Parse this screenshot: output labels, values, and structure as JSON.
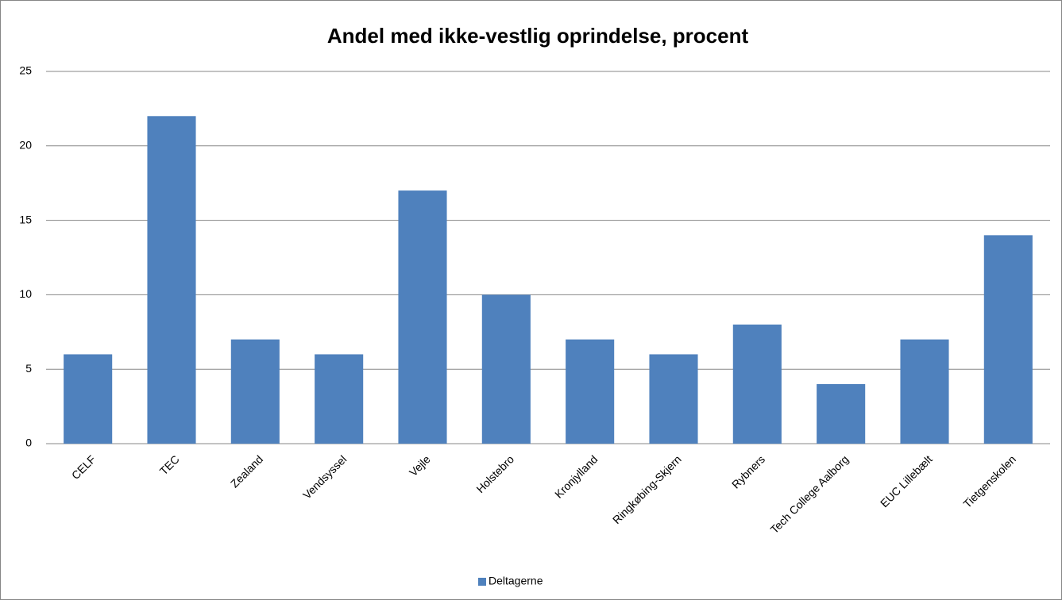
{
  "chart_data": {
    "type": "bar",
    "title": "Andel med ikke-vestlig oprindelse, procent",
    "categories": [
      "CELF",
      "TEC",
      "Zealand",
      "Vendsyssel",
      "Vejle",
      "Holstebro",
      "Kronjylland",
      "Ringkøbing-Skjern",
      "Rybners",
      "Tech College Aalborg",
      "EUC Lillebælt",
      "Tietgenskolen"
    ],
    "series": [
      {
        "name": "Deltagerne",
        "color": "#4f81bd",
        "values": [
          6,
          22,
          7,
          6,
          17,
          10,
          7,
          6,
          8,
          4,
          7,
          14
        ]
      }
    ],
    "ylim": [
      0,
      25
    ],
    "yticks": [
      0,
      5,
      10,
      15,
      20,
      25
    ],
    "grid": true,
    "legend": "bottom"
  }
}
